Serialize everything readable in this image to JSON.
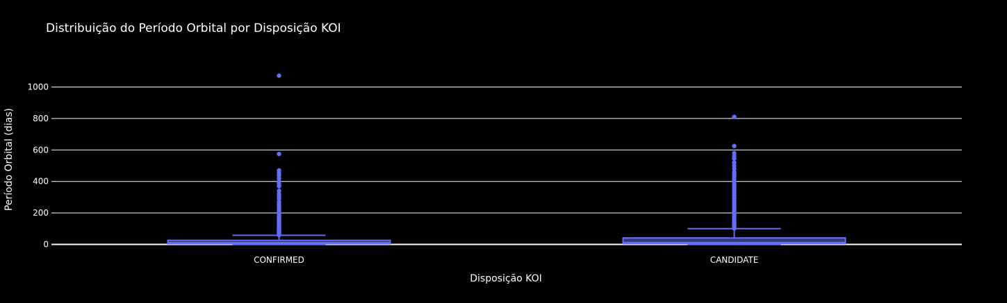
{
  "chart_data": {
    "type": "box",
    "title": "Distribuição do Período Orbital por Disposição KOI",
    "xlabel": "Disposição KOI",
    "ylabel": "Período Orbital (dias)",
    "categories": [
      "CONFIRMED",
      "CANDIDATE"
    ],
    "ylim": [
      -10,
      1110
    ],
    "yticks": [
      0,
      200,
      400,
      600,
      800,
      1000
    ],
    "grid": true,
    "legend": "none",
    "color": "#636efa",
    "boxes": [
      {
        "category": "CONFIRMED",
        "min": 0.3,
        "q1": 4.5,
        "median": 11.0,
        "q3": 26.0,
        "upper_fence": 58.0,
        "outliers": [
          60,
          65,
          70,
          75,
          80,
          85,
          90,
          95,
          100,
          108,
          115,
          120,
          128,
          135,
          142,
          150,
          158,
          165,
          172,
          180,
          190,
          200,
          210,
          220,
          230,
          240,
          255,
          270,
          290,
          305,
          320,
          340,
          370,
          385,
          400,
          420,
          440,
          455,
          470,
          575,
          1072
        ]
      },
      {
        "category": "CANDIDATE",
        "min": 0.3,
        "q1": 5.0,
        "median": 12.0,
        "q3": 41.0,
        "upper_fence": 100.0,
        "outliers": [
          102,
          108,
          115,
          120,
          128,
          135,
          142,
          150,
          160,
          170,
          180,
          190,
          200,
          210,
          220,
          235,
          250,
          265,
          280,
          295,
          310,
          325,
          340,
          355,
          370,
          385,
          400,
          415,
          430,
          445,
          460,
          480,
          500,
          520,
          545,
          560,
          580,
          625,
          810
        ]
      }
    ]
  }
}
